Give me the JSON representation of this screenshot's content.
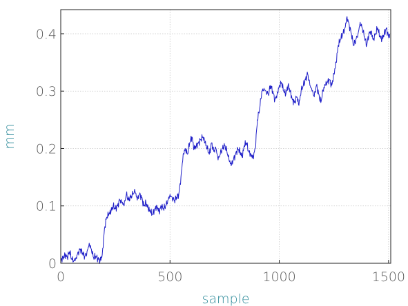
{
  "chart_data": {
    "type": "line",
    "title": "",
    "xlabel": "sample",
    "ylabel": "mm",
    "xlim": [
      0,
      1500
    ],
    "ylim": [
      0,
      0.45
    ],
    "xticks": [
      0,
      500,
      1000,
      1500
    ],
    "yticks": [
      0,
      0.1,
      0.2,
      0.3,
      0.4
    ],
    "xtick_labels": [
      "0",
      "500",
      "1000",
      "1500"
    ],
    "ytick_labels": [
      "0",
      "0.1",
      "0.2",
      "0.3",
      "0.4"
    ],
    "grid": true,
    "legend": "none",
    "series": [
      {
        "color": "#1f1fc8",
        "x": [
          0,
          10,
          20,
          30,
          40,
          50,
          60,
          70,
          80,
          90,
          100,
          110,
          120,
          130,
          140,
          150,
          160,
          170,
          180,
          190,
          200,
          210,
          220,
          230,
          240,
          250,
          260,
          270,
          280,
          290,
          300,
          310,
          320,
          330,
          340,
          350,
          360,
          370,
          380,
          390,
          400,
          410,
          420,
          430,
          440,
          450,
          460,
          470,
          480,
          490,
          500,
          510,
          520,
          530,
          540,
          550,
          560,
          570,
          580,
          590,
          600,
          610,
          620,
          630,
          640,
          650,
          660,
          670,
          680,
          690,
          700,
          710,
          720,
          730,
          740,
          750,
          760,
          770,
          780,
          790,
          800,
          810,
          820,
          830,
          840,
          850,
          860,
          870,
          880,
          890,
          900,
          910,
          920,
          930,
          940,
          950,
          960,
          970,
          980,
          990,
          1000,
          1010,
          1020,
          1030,
          1040,
          1050,
          1060,
          1070,
          1080,
          1090,
          1100,
          1110,
          1120,
          1130,
          1140,
          1150,
          1160,
          1170,
          1180,
          1190,
          1200,
          1210,
          1220,
          1230,
          1240,
          1250,
          1260,
          1270,
          1280,
          1290,
          1300,
          1310,
          1320,
          1330,
          1340,
          1350,
          1360,
          1370,
          1380,
          1390,
          1400,
          1410,
          1420,
          1430,
          1440,
          1450,
          1460,
          1470,
          1480,
          1490,
          1500,
          1505
        ],
        "y": [
          0.005,
          0.01,
          0.015,
          0.01,
          0.02,
          0.008,
          0.005,
          0.01,
          0.02,
          0.025,
          0.018,
          0.012,
          0.02,
          0.035,
          0.025,
          0.01,
          0.012,
          0.008,
          0.005,
          0.015,
          0.06,
          0.08,
          0.085,
          0.09,
          0.1,
          0.095,
          0.1,
          0.11,
          0.105,
          0.1,
          0.12,
          0.11,
          0.115,
          0.12,
          0.125,
          0.11,
          0.12,
          0.115,
          0.1,
          0.105,
          0.095,
          0.09,
          0.085,
          0.095,
          0.1,
          0.09,
          0.1,
          0.095,
          0.1,
          0.11,
          0.12,
          0.115,
          0.11,
          0.115,
          0.12,
          0.15,
          0.19,
          0.2,
          0.19,
          0.21,
          0.22,
          0.2,
          0.205,
          0.21,
          0.215,
          0.22,
          0.21,
          0.2,
          0.19,
          0.21,
          0.195,
          0.2,
          0.18,
          0.19,
          0.2,
          0.205,
          0.195,
          0.18,
          0.17,
          0.18,
          0.19,
          0.2,
          0.195,
          0.185,
          0.205,
          0.21,
          0.195,
          0.19,
          0.185,
          0.2,
          0.25,
          0.27,
          0.3,
          0.305,
          0.3,
          0.295,
          0.31,
          0.3,
          0.285,
          0.295,
          0.31,
          0.315,
          0.3,
          0.295,
          0.31,
          0.3,
          0.285,
          0.28,
          0.29,
          0.275,
          0.3,
          0.31,
          0.32,
          0.33,
          0.31,
          0.3,
          0.29,
          0.31,
          0.295,
          0.28,
          0.3,
          0.31,
          0.315,
          0.32,
          0.31,
          0.33,
          0.35,
          0.38,
          0.39,
          0.4,
          0.41,
          0.43,
          0.415,
          0.4,
          0.38,
          0.39,
          0.4,
          0.42,
          0.41,
          0.395,
          0.38,
          0.4,
          0.405,
          0.39,
          0.4,
          0.41,
          0.395,
          0.39,
          0.4,
          0.41,
          0.395,
          0.4
        ]
      }
    ]
  }
}
